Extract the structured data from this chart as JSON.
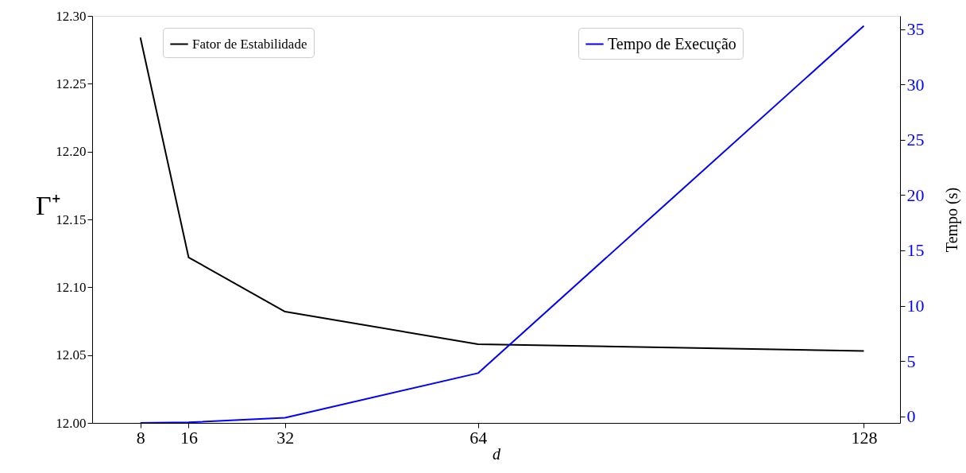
{
  "chart_data": {
    "type": "line",
    "xlabel": "d",
    "ylabel": "Γ⁺",
    "y2label": "Tempo (s)",
    "x": [
      8,
      16,
      32,
      64,
      128
    ],
    "series": [
      {
        "name": "Fator de Estabilidade",
        "color": "#000000",
        "values": [
          12.284,
          12.122,
          12.082,
          12.058,
          12.053
        ]
      },
      {
        "name": "Tempo de Execução",
        "color": "#0000ff",
        "axis": "y2",
        "values": [
          -0.6,
          -0.55,
          -0.13,
          3.9,
          35.3
        ]
      }
    ],
    "xlim": [
      0,
      134
    ],
    "xticks": [
      8,
      16,
      32,
      64,
      128
    ],
    "ylim": [
      12.0,
      12.3
    ],
    "yticks": [
      {
        "value": 12.0,
        "label": "12.00"
      },
      {
        "value": 12.05,
        "label": "12.05"
      },
      {
        "value": 12.1,
        "label": "12.10"
      },
      {
        "value": 12.15,
        "label": "12.15"
      },
      {
        "value": 12.2,
        "label": "12.20"
      },
      {
        "value": 12.25,
        "label": "12.25"
      },
      {
        "value": 12.3,
        "label": "12.30"
      }
    ],
    "y2lim": [
      -0.6,
      36.2
    ],
    "y2ticks": [
      0,
      5,
      10,
      15,
      20,
      25,
      30,
      35
    ],
    "legend": "top",
    "grid": false,
    "marker": "none",
    "line_style": "solid"
  }
}
